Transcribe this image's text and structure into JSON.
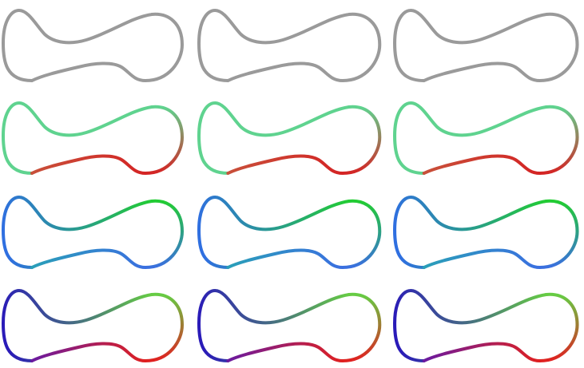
{
  "grid": {
    "rows": [
      {
        "id": "gray",
        "segments": [
          {
            "from": "#9a9a9a",
            "to": "#9a9a9a"
          }
        ]
      },
      {
        "id": "green-red",
        "segments": [
          {
            "from": "#5fd38f",
            "to": "#5fd38f"
          },
          {
            "from": "#5fd38f",
            "to": "#d42424"
          },
          {
            "from": "#d42424",
            "to": "#c8503a"
          }
        ]
      },
      {
        "id": "blue-green",
        "segments": [
          {
            "from": "#2f6fe0",
            "to": "#22cc33"
          },
          {
            "from": "#22cc33",
            "to": "#3a6fe0"
          },
          {
            "from": "#3a6fe0",
            "to": "#2a9fb8"
          }
        ]
      },
      {
        "id": "purple-red",
        "segments": [
          {
            "from": "#2a1bb8",
            "to": "#66cc44"
          },
          {
            "from": "#66cc44",
            "to": "#e02020"
          },
          {
            "from": "#e02020",
            "to": "#6a1aa0"
          }
        ]
      }
    ],
    "columns": 3
  }
}
